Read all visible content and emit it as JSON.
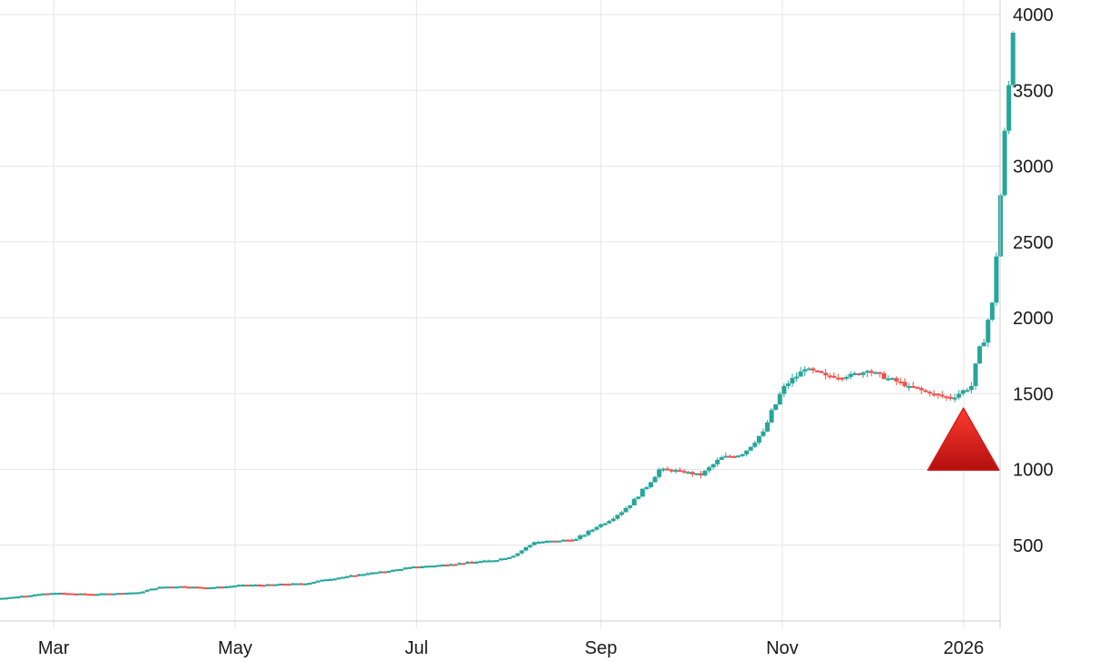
{
  "chart_data": {
    "type": "candlestick",
    "title": "",
    "xlabel": "",
    "ylabel": "",
    "y_axis_side": "right",
    "ylim": [
      0,
      4000
    ],
    "y_ticks": [
      500,
      1000,
      1500,
      2000,
      2500,
      3000,
      3500,
      4000
    ],
    "y_tick_labels": [
      "500",
      "1000",
      "1500",
      "2000",
      "2500",
      "3000",
      "3500",
      "4000"
    ],
    "x_ticks": [
      {
        "label": "Mar",
        "date": "2025-03-01"
      },
      {
        "label": "May",
        "date": "2025-05-01"
      },
      {
        "label": "Jul",
        "date": "2025-07-01"
      },
      {
        "label": "Sep",
        "date": "2025-09-01"
      },
      {
        "label": "Nov",
        "date": "2025-11-01"
      },
      {
        "label": "2026",
        "date": "2026-01-01"
      }
    ],
    "grid": true,
    "colors": {
      "up": "#26a69a",
      "down": "#ef5350",
      "grid": "#e6e6e6",
      "marker": "#d61a1a"
    },
    "annotation": {
      "shape": "red-triangle-up",
      "date": "2025-12-31",
      "value": 1200
    },
    "series": [
      {
        "values": [
          [
            "2025-02-10",
            150,
            160
          ],
          [
            "2025-02-17",
            160,
            175
          ],
          [
            "2025-02-24",
            175,
            185
          ],
          [
            "2025-03-03",
            185,
            180
          ],
          [
            "2025-03-10",
            180,
            178
          ],
          [
            "2025-03-17",
            178,
            185
          ],
          [
            "2025-03-24",
            185,
            190
          ],
          [
            "2025-03-31",
            190,
            225
          ],
          [
            "2025-04-07",
            225,
            230
          ],
          [
            "2025-04-14",
            230,
            222
          ],
          [
            "2025-04-21",
            222,
            225
          ],
          [
            "2025-04-28",
            225,
            240
          ],
          [
            "2025-05-05",
            240,
            238
          ],
          [
            "2025-05-12",
            238,
            245
          ],
          [
            "2025-05-19",
            245,
            248
          ],
          [
            "2025-05-26",
            248,
            275
          ],
          [
            "2025-06-02",
            275,
            295
          ],
          [
            "2025-06-09",
            295,
            315
          ],
          [
            "2025-06-16",
            315,
            330
          ],
          [
            "2025-06-23",
            330,
            355
          ],
          [
            "2025-06-30",
            355,
            365
          ],
          [
            "2025-07-07",
            365,
            375
          ],
          [
            "2025-07-14",
            375,
            390
          ],
          [
            "2025-07-21",
            390,
            400
          ],
          [
            "2025-07-28",
            400,
            430
          ],
          [
            "2025-08-04",
            430,
            520
          ],
          [
            "2025-08-11",
            520,
            530
          ],
          [
            "2025-08-18",
            530,
            540
          ],
          [
            "2025-08-25",
            540,
            620
          ],
          [
            "2025-09-01",
            620,
            700
          ],
          [
            "2025-09-08",
            700,
            820
          ],
          [
            "2025-09-15",
            820,
            1000
          ],
          [
            "2025-09-22",
            1000,
            990
          ],
          [
            "2025-09-29",
            990,
            960
          ],
          [
            "2025-10-06",
            960,
            1080
          ],
          [
            "2025-10-13",
            1080,
            1100
          ],
          [
            "2025-10-20",
            1100,
            1250
          ],
          [
            "2025-10-27",
            1250,
            1550
          ],
          [
            "2025-11-03",
            1550,
            1660
          ],
          [
            "2025-11-10",
            1660,
            1620
          ],
          [
            "2025-11-17",
            1620,
            1610
          ],
          [
            "2025-11-24",
            1610,
            1650
          ],
          [
            "2025-12-01",
            1650,
            1600
          ],
          [
            "2025-12-08",
            1600,
            1550
          ],
          [
            "2025-12-15",
            1550,
            1500
          ],
          [
            "2025-12-22",
            1500,
            1470
          ],
          [
            "2025-12-29",
            1470,
            1550
          ],
          [
            "2026-01-05",
            1550,
            2100
          ],
          [
            "2026-01-12",
            2100,
            3880
          ]
        ]
      }
    ]
  }
}
